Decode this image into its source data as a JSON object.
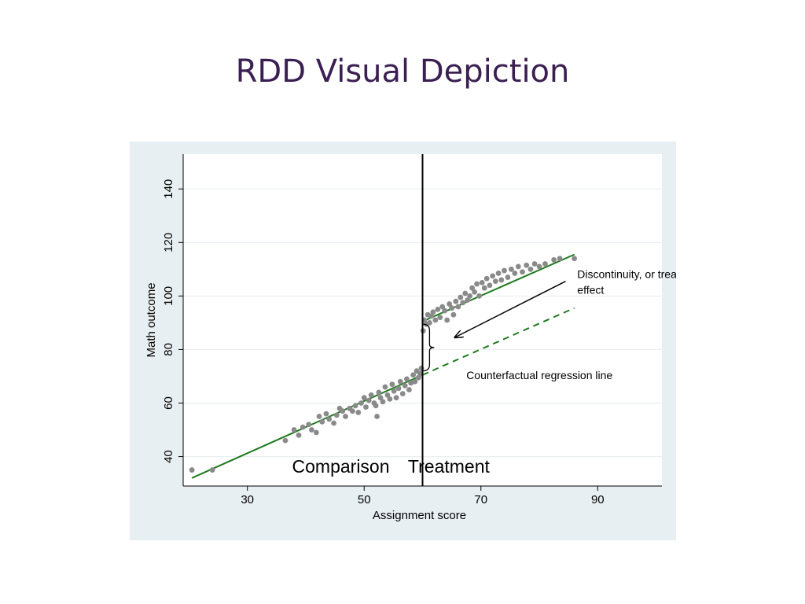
{
  "slide": {
    "title": "RDD Visual Depiction"
  },
  "colors": {
    "title": "#3b1f52",
    "panel": "#e8eff2",
    "plot_background": "#ffffff",
    "points": "#8a8a8a",
    "fit_line": "#1f7a1f",
    "counterfactual_line": "#1f7a1f",
    "cutoff_line": "#000000"
  },
  "chart_data": {
    "type": "scatter",
    "title": "",
    "xlabel": "Assignment score",
    "ylabel": "Math outcome",
    "xlim": [
      19,
      101
    ],
    "ylim": [
      29,
      153
    ],
    "xticks": [
      30,
      50,
      70,
      90
    ],
    "yticks": [
      40,
      60,
      80,
      100,
      120,
      140
    ],
    "grid": {
      "horizontal": true,
      "vertical": false
    },
    "cutoff": 60,
    "regions": [
      {
        "label": "Comparison",
        "x": 46,
        "y": 34
      },
      {
        "label": "Treatment",
        "x": 64.5,
        "y": 34
      }
    ],
    "fit_lines": [
      {
        "name": "control-fit",
        "x": [
          20.5,
          60
        ],
        "y": [
          32,
          70.5
        ],
        "style": "solid"
      },
      {
        "name": "treatment-fit",
        "x": [
          60,
          86
        ],
        "y": [
          90.5,
          115.5
        ],
        "style": "solid"
      },
      {
        "name": "counterfactual-fit",
        "x": [
          60,
          86
        ],
        "y": [
          70.5,
          95.5
        ],
        "style": "dashed"
      }
    ],
    "annotations": [
      {
        "name": "discontinuity-label",
        "text": "Discontinuity, or treatment effect",
        "x": 86.5,
        "y": 105
      },
      {
        "name": "counterfactual-label",
        "text": "Counterfactual regression line",
        "x": 67.5,
        "y": 69
      }
    ],
    "arrow": {
      "from": [
        84.5,
        105.5
      ],
      "to": [
        65.5,
        84.5
      ]
    },
    "brace": {
      "x": 61.2,
      "y_range": [
        72,
        89.5
      ]
    },
    "points": [
      [
        20.5,
        35
      ],
      [
        24,
        35
      ],
      [
        36.5,
        46
      ],
      [
        38,
        50
      ],
      [
        38.8,
        48
      ],
      [
        39.5,
        51
      ],
      [
        40.5,
        52
      ],
      [
        41,
        50
      ],
      [
        41.8,
        49
      ],
      [
        42.3,
        55
      ],
      [
        42.8,
        53
      ],
      [
        43.5,
        56
      ],
      [
        44,
        54
      ],
      [
        44.8,
        52.5
      ],
      [
        45.3,
        55.5
      ],
      [
        45.8,
        58
      ],
      [
        46.3,
        57
      ],
      [
        46.8,
        55
      ],
      [
        47.5,
        58
      ],
      [
        48,
        57
      ],
      [
        48.5,
        59
      ],
      [
        49,
        56.5
      ],
      [
        49.5,
        60
      ],
      [
        50,
        62
      ],
      [
        50.3,
        58.5
      ],
      [
        50.8,
        61
      ],
      [
        51.2,
        63
      ],
      [
        51.7,
        60
      ],
      [
        52,
        59
      ],
      [
        52.2,
        55
      ],
      [
        52.5,
        64
      ],
      [
        52.8,
        62
      ],
      [
        53.2,
        60.5
      ],
      [
        53.6,
        66
      ],
      [
        54,
        63
      ],
      [
        54.4,
        61.5
      ],
      [
        54.8,
        67
      ],
      [
        55.1,
        64.5
      ],
      [
        55.5,
        62
      ],
      [
        55.9,
        65.5
      ],
      [
        56.2,
        68
      ],
      [
        56.6,
        63.5
      ],
      [
        57,
        66.5
      ],
      [
        57.3,
        69
      ],
      [
        57.7,
        65
      ],
      [
        58,
        67.5
      ],
      [
        58.4,
        70.5
      ],
      [
        58.7,
        68
      ],
      [
        59,
        72
      ],
      [
        59.3,
        69.5
      ],
      [
        59.6,
        71
      ],
      [
        59.8,
        73
      ],
      [
        60.1,
        87
      ],
      [
        60.3,
        91
      ],
      [
        60.6,
        89.5
      ],
      [
        60.9,
        93
      ],
      [
        61.2,
        90
      ],
      [
        61.5,
        92.5
      ],
      [
        61.8,
        94
      ],
      [
        62.2,
        91
      ],
      [
        62.6,
        95
      ],
      [
        63,
        92
      ],
      [
        63.4,
        96
      ],
      [
        63.8,
        94.5
      ],
      [
        64.2,
        91
      ],
      [
        64.6,
        97
      ],
      [
        65,
        95.5
      ],
      [
        65.3,
        93
      ],
      [
        65.7,
        98
      ],
      [
        66.1,
        96
      ],
      [
        66.5,
        99.5
      ],
      [
        66.9,
        97.5
      ],
      [
        67.3,
        101
      ],
      [
        67.7,
        98.5
      ],
      [
        68.1,
        100
      ],
      [
        68.5,
        103
      ],
      [
        68.9,
        101.5
      ],
      [
        69.3,
        104.5
      ],
      [
        69.7,
        100
      ],
      [
        70.2,
        105
      ],
      [
        70.6,
        103
      ],
      [
        71,
        106.5
      ],
      [
        71.5,
        104
      ],
      [
        72,
        107.5
      ],
      [
        72.5,
        105.5
      ],
      [
        73,
        108.5
      ],
      [
        73.5,
        106
      ],
      [
        74,
        109.5
      ],
      [
        74.6,
        107
      ],
      [
        75.2,
        110
      ],
      [
        75.8,
        108.5
      ],
      [
        76.4,
        111
      ],
      [
        77.1,
        109
      ],
      [
        77.8,
        111.5
      ],
      [
        78.5,
        110
      ],
      [
        79.2,
        112
      ],
      [
        80,
        111
      ],
      [
        81,
        112
      ],
      [
        82.5,
        113.5
      ],
      [
        83.5,
        114
      ],
      [
        86,
        114
      ]
    ]
  }
}
